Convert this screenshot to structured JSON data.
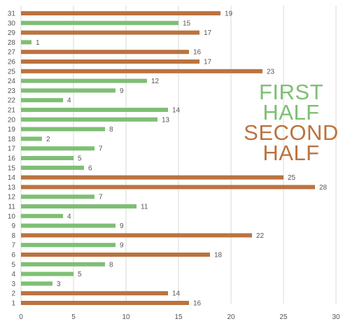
{
  "chart_data": {
    "type": "bar",
    "orientation": "horizontal",
    "title": "",
    "xlabel": "",
    "ylabel": "",
    "xlim": [
      0,
      30
    ],
    "xticks": [
      0,
      5,
      10,
      15,
      20,
      25,
      30
    ],
    "grid": "vertical",
    "legend_position": "right",
    "colors": {
      "first": "#7ebf74",
      "second": "#bb7340"
    },
    "legend": [
      {
        "text": "FIRST",
        "series": "first"
      },
      {
        "text": "HALF",
        "series": "first"
      },
      {
        "text": "SECOND",
        "series": "second"
      },
      {
        "text": "HALF",
        "series": "second"
      }
    ],
    "categories": [
      "1",
      "2",
      "3",
      "4",
      "5",
      "6",
      "7",
      "8",
      "9",
      "10",
      "11",
      "12",
      "13",
      "14",
      "15",
      "16",
      "17",
      "18",
      "19",
      "20",
      "21",
      "22",
      "23",
      "24",
      "25",
      "26",
      "27",
      "28",
      "29",
      "30",
      "31"
    ],
    "values": [
      16,
      14,
      3,
      5,
      8,
      18,
      9,
      22,
      9,
      4,
      11,
      7,
      28,
      25,
      6,
      5,
      7,
      2,
      8,
      13,
      14,
      4,
      9,
      12,
      23,
      17,
      16,
      1,
      17,
      15,
      19
    ],
    "groups": [
      "second",
      "second",
      "first",
      "first",
      "first",
      "second",
      "first",
      "second",
      "first",
      "first",
      "first",
      "first",
      "second",
      "second",
      "first",
      "first",
      "first",
      "first",
      "first",
      "first",
      "first",
      "first",
      "first",
      "first",
      "second",
      "second",
      "second",
      "first",
      "second",
      "first",
      "second"
    ]
  }
}
